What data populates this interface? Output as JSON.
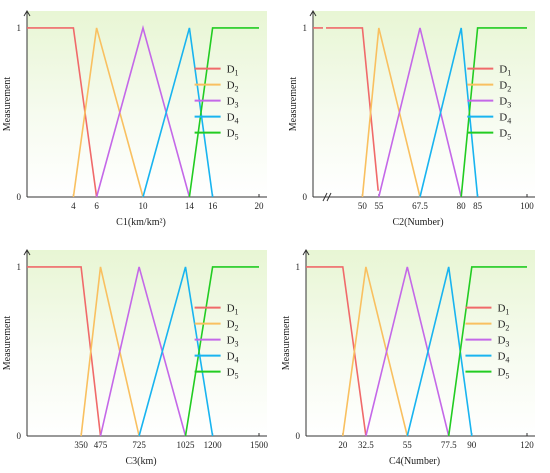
{
  "chart_data": [
    {
      "type": "line",
      "xlabel": "C1(km/km²)",
      "ylabel": "Measurement",
      "y_ticks": [
        "0",
        "1"
      ],
      "x_ticks": [
        "4",
        "6",
        "10",
        "14",
        "16",
        "20"
      ],
      "xlim": [
        0,
        20
      ],
      "ylim": [
        0,
        1.1
      ],
      "axis_break": false,
      "series": [
        {
          "name": "D",
          "sub": "1",
          "color": "#f06a6a",
          "points": [
            [
              0,
              1
            ],
            [
              4,
              1
            ],
            [
              6,
              0
            ]
          ]
        },
        {
          "name": "D",
          "sub": "2",
          "color": "#f9c060",
          "points": [
            [
              4,
              0
            ],
            [
              6,
              1
            ],
            [
              10,
              0
            ]
          ]
        },
        {
          "name": "D",
          "sub": "3",
          "color": "#c468e8",
          "points": [
            [
              6,
              0
            ],
            [
              10,
              1
            ],
            [
              14,
              0
            ]
          ]
        },
        {
          "name": "D",
          "sub": "4",
          "color": "#18b4f0",
          "points": [
            [
              10,
              0
            ],
            [
              14,
              1
            ],
            [
              16,
              0
            ]
          ]
        },
        {
          "name": "D",
          "sub": "5",
          "color": "#22cc22",
          "points": [
            [
              14,
              0
            ],
            [
              16,
              1
            ],
            [
              20,
              1
            ]
          ]
        }
      ]
    },
    {
      "type": "line",
      "xlabel": "C2(Number)",
      "ylabel": "Measurement",
      "y_ticks": [
        "0",
        "1"
      ],
      "x_ticks": [
        "50",
        "55",
        "67.5",
        "80",
        "85",
        "100"
      ],
      "xlim": [
        35,
        100
      ],
      "ylim": [
        0,
        1.1
      ],
      "axis_break": true,
      "series": [
        {
          "name": "D",
          "sub": "1",
          "color": "#f06a6a",
          "points": [
            [
              35,
              1
            ],
            [
              50,
              1
            ],
            [
              55,
              0
            ]
          ]
        },
        {
          "name": "D",
          "sub": "2",
          "color": "#f9c060",
          "points": [
            [
              50,
              0
            ],
            [
              55,
              1
            ],
            [
              67.5,
              0
            ]
          ]
        },
        {
          "name": "D",
          "sub": "3",
          "color": "#c468e8",
          "points": [
            [
              55,
              0
            ],
            [
              67.5,
              1
            ],
            [
              80,
              0
            ]
          ]
        },
        {
          "name": "D",
          "sub": "4",
          "color": "#18b4f0",
          "points": [
            [
              67.5,
              0
            ],
            [
              80,
              1
            ],
            [
              85,
              0
            ]
          ]
        },
        {
          "name": "D",
          "sub": "5",
          "color": "#22cc22",
          "points": [
            [
              80,
              0
            ],
            [
              85,
              1
            ],
            [
              100,
              1
            ]
          ]
        }
      ]
    },
    {
      "type": "line",
      "xlabel": "C3(km)",
      "ylabel": "Measurement",
      "y_ticks": [
        "0",
        "1"
      ],
      "x_ticks": [
        "350",
        "475",
        "725",
        "1025",
        "1200",
        "1500"
      ],
      "xlim": [
        0,
        1500
      ],
      "ylim": [
        0,
        1.1
      ],
      "axis_break": false,
      "series": [
        {
          "name": "D",
          "sub": "1",
          "color": "#f06a6a",
          "points": [
            [
              0,
              1
            ],
            [
              350,
              1
            ],
            [
              475,
              0
            ]
          ]
        },
        {
          "name": "D",
          "sub": "2",
          "color": "#f9c060",
          "points": [
            [
              350,
              0
            ],
            [
              475,
              1
            ],
            [
              725,
              0
            ]
          ]
        },
        {
          "name": "D",
          "sub": "3",
          "color": "#c468e8",
          "points": [
            [
              475,
              0
            ],
            [
              725,
              1
            ],
            [
              1025,
              0
            ]
          ]
        },
        {
          "name": "D",
          "sub": "4",
          "color": "#18b4f0",
          "points": [
            [
              725,
              0
            ],
            [
              1025,
              1
            ],
            [
              1200,
              0
            ]
          ]
        },
        {
          "name": "D",
          "sub": "5",
          "color": "#22cc22",
          "points": [
            [
              1025,
              0
            ],
            [
              1200,
              1
            ],
            [
              1500,
              1
            ]
          ]
        }
      ]
    },
    {
      "type": "line",
      "xlabel": "C4(Number)",
      "ylabel": "Measurement",
      "y_ticks": [
        "0",
        "1"
      ],
      "x_ticks": [
        "20",
        "32.5",
        "55",
        "77.5",
        "90",
        "120"
      ],
      "xlim": [
        0,
        120
      ],
      "ylim": [
        0,
        1.1
      ],
      "axis_break": false,
      "series": [
        {
          "name": "D",
          "sub": "1",
          "color": "#f06a6a",
          "points": [
            [
              0,
              1
            ],
            [
              20,
              1
            ],
            [
              32.5,
              0
            ]
          ]
        },
        {
          "name": "D",
          "sub": "2",
          "color": "#f9c060",
          "points": [
            [
              20,
              0
            ],
            [
              32.5,
              1
            ],
            [
              55,
              0
            ]
          ]
        },
        {
          "name": "D",
          "sub": "3",
          "color": "#c468e8",
          "points": [
            [
              32.5,
              0
            ],
            [
              55,
              1
            ],
            [
              77.5,
              0
            ]
          ]
        },
        {
          "name": "D",
          "sub": "4",
          "color": "#18b4f0",
          "points": [
            [
              55,
              0
            ],
            [
              77.5,
              1
            ],
            [
              90,
              0
            ]
          ]
        },
        {
          "name": "D",
          "sub": "5",
          "color": "#22cc22",
          "points": [
            [
              77.5,
              0
            ],
            [
              90,
              1
            ],
            [
              120,
              1
            ]
          ]
        }
      ]
    }
  ]
}
